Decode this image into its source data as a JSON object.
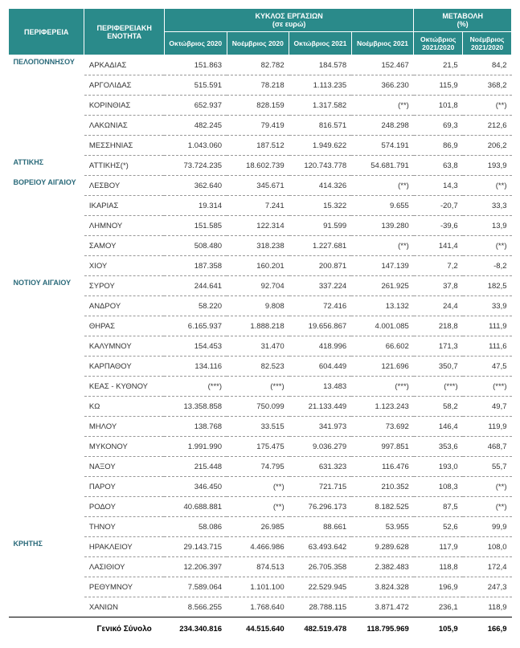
{
  "headers": {
    "region": "ΠΕΡΙΦΕΡΕΙΑ",
    "unit": "ΠΕΡΙΦΕΡΕΙΑΚΗ ΕΝΟΤΗΤΑ",
    "turnover": "ΚΥΚΛΟΣ ΕΡΓΑΣΙΩΝ",
    "turnover_sub": "(σε ευρώ)",
    "change": "ΜΕΤΑΒΟΛΗ",
    "change_sub": "(%)",
    "oct20": "Οκτώβριος 2020",
    "nov20": "Νοέμβριος 2020",
    "oct21": "Οκτώβριος 2021",
    "nov21": "Νοέμβριος 2021",
    "oct_ch": "Οκτώβριος 2021/2020",
    "nov_ch": "Νοέμβριος 2021/2020"
  },
  "colors": {
    "header_bg": "#2a8a8a",
    "header_fg": "#ffffff",
    "region_fg": "#2a6a7a"
  },
  "groups": [
    {
      "region": "ΠΕΛΟΠΟΝΝΗΣΟΥ",
      "rows": [
        {
          "unit": "ΑΡΚΑΔΙΑΣ",
          "oct20": "151.863",
          "nov20": "82.782",
          "oct21": "184.578",
          "nov21": "152.467",
          "octc": "21,5",
          "novc": "84,2"
        },
        {
          "unit": "ΑΡΓΟΛΙΔΑΣ",
          "oct20": "515.591",
          "nov20": "78.218",
          "oct21": "1.113.235",
          "nov21": "366.230",
          "octc": "115,9",
          "novc": "368,2"
        },
        {
          "unit": "ΚΟΡΙΝΘΙΑΣ",
          "oct20": "652.937",
          "nov20": "828.159",
          "oct21": "1.317.582",
          "nov21": "(**)",
          "octc": "101,8",
          "novc": "(**)"
        },
        {
          "unit": "ΛΑΚΩΝΙΑΣ",
          "oct20": "482.245",
          "nov20": "79.419",
          "oct21": "816.571",
          "nov21": "248.298",
          "octc": "69,3",
          "novc": "212,6"
        },
        {
          "unit": "ΜΕΣΣΗΝΙΑΣ",
          "oct20": "1.043.060",
          "nov20": "187.512",
          "oct21": "1.949.622",
          "nov21": "574.191",
          "octc": "86,9",
          "novc": "206,2"
        }
      ]
    },
    {
      "region": "ΑΤΤΙΚΗΣ",
      "rows": [
        {
          "unit": "ΑΤΤΙΚΗΣ(*)",
          "oct20": "73.724.235",
          "nov20": "18.602.739",
          "oct21": "120.743.778",
          "nov21": "54.681.791",
          "octc": "63,8",
          "novc": "193,9"
        }
      ]
    },
    {
      "region": "ΒΟΡΕΙΟΥ ΑΙΓΑΙΟΥ",
      "rows": [
        {
          "unit": "ΛΕΣΒΟΥ",
          "oct20": "362.640",
          "nov20": "345.671",
          "oct21": "414.326",
          "nov21": "(**)",
          "octc": "14,3",
          "novc": "(**)"
        },
        {
          "unit": "ΙΚΑΡΙΑΣ",
          "oct20": "19.314",
          "nov20": "7.241",
          "oct21": "15.322",
          "nov21": "9.655",
          "octc": "-20,7",
          "novc": "33,3"
        },
        {
          "unit": "ΛΗΜΝΟΥ",
          "oct20": "151.585",
          "nov20": "122.314",
          "oct21": "91.599",
          "nov21": "139.280",
          "octc": "-39,6",
          "novc": "13,9"
        },
        {
          "unit": "ΣΑΜΟΥ",
          "oct20": "508.480",
          "nov20": "318.238",
          "oct21": "1.227.681",
          "nov21": "(**)",
          "octc": "141,4",
          "novc": "(**)"
        },
        {
          "unit": "ΧΙΟΥ",
          "oct20": "187.358",
          "nov20": "160.201",
          "oct21": "200.871",
          "nov21": "147.139",
          "octc": "7,2",
          "novc": "-8,2"
        }
      ]
    },
    {
      "region": "ΝΟΤΙΟΥ ΑΙΓΑΙΟΥ",
      "rows": [
        {
          "unit": "ΣΥΡΟΥ",
          "oct20": "244.641",
          "nov20": "92.704",
          "oct21": "337.224",
          "nov21": "261.925",
          "octc": "37,8",
          "novc": "182,5"
        },
        {
          "unit": "ΑΝΔΡΟΥ",
          "oct20": "58.220",
          "nov20": "9.808",
          "oct21": "72.416",
          "nov21": "13.132",
          "octc": "24,4",
          "novc": "33,9"
        },
        {
          "unit": "ΘΗΡΑΣ",
          "oct20": "6.165.937",
          "nov20": "1.888.218",
          "oct21": "19.656.867",
          "nov21": "4.001.085",
          "octc": "218,8",
          "novc": "111,9"
        },
        {
          "unit": "ΚΑΛΥΜΝΟΥ",
          "oct20": "154.453",
          "nov20": "31.470",
          "oct21": "418.996",
          "nov21": "66.602",
          "octc": "171,3",
          "novc": "111,6"
        },
        {
          "unit": "ΚΑΡΠΑΘΟΥ",
          "oct20": "134.116",
          "nov20": "82.523",
          "oct21": "604.449",
          "nov21": "121.696",
          "octc": "350,7",
          "novc": "47,5"
        },
        {
          "unit": "ΚΕΑΣ - ΚΥΘΝΟΥ",
          "oct20": "(***)",
          "nov20": "(***)",
          "oct21": "13.483",
          "nov21": "(***)",
          "octc": "(***)",
          "novc": "(***)"
        },
        {
          "unit": "ΚΩ",
          "oct20": "13.358.858",
          "nov20": "750.099",
          "oct21": "21.133.449",
          "nov21": "1.123.243",
          "octc": "58,2",
          "novc": "49,7"
        },
        {
          "unit": "ΜΗΛΟΥ",
          "oct20": "138.768",
          "nov20": "33.515",
          "oct21": "341.973",
          "nov21": "73.692",
          "octc": "146,4",
          "novc": "119,9"
        },
        {
          "unit": "ΜΥΚΟΝΟΥ",
          "oct20": "1.991.990",
          "nov20": "175.475",
          "oct21": "9.036.279",
          "nov21": "997.851",
          "octc": "353,6",
          "novc": "468,7"
        },
        {
          "unit": "ΝΑΞΟΥ",
          "oct20": "215.448",
          "nov20": "74.795",
          "oct21": "631.323",
          "nov21": "116.476",
          "octc": "193,0",
          "novc": "55,7"
        },
        {
          "unit": "ΠΑΡΟΥ",
          "oct20": "346.450",
          "nov20": "(**)",
          "oct21": "721.715",
          "nov21": "210.352",
          "octc": "108,3",
          "novc": "(**)"
        },
        {
          "unit": "ΡΟΔΟΥ",
          "oct20": "40.688.881",
          "nov20": "(**)",
          "oct21": "76.296.173",
          "nov21": "8.182.525",
          "octc": "87,5",
          "novc": "(**)"
        },
        {
          "unit": "ΤΗΝΟΥ",
          "oct20": "58.086",
          "nov20": "26.985",
          "oct21": "88.661",
          "nov21": "53.955",
          "octc": "52,6",
          "novc": "99,9"
        }
      ]
    },
    {
      "region": "ΚΡΗΤΗΣ",
      "rows": [
        {
          "unit": "ΗΡΑΚΛΕΙΟΥ",
          "oct20": "29.143.715",
          "nov20": "4.466.986",
          "oct21": "63.493.642",
          "nov21": "9.289.628",
          "octc": "117,9",
          "novc": "108,0"
        },
        {
          "unit": "ΛΑΣΙΘΙΟΥ",
          "oct20": "12.206.397",
          "nov20": "874.513",
          "oct21": "26.705.358",
          "nov21": "2.382.483",
          "octc": "118,8",
          "novc": "172,4"
        },
        {
          "unit": "ΡΕΘΥΜΝΟΥ",
          "oct20": "7.589.064",
          "nov20": "1.101.100",
          "oct21": "22.529.945",
          "nov21": "3.824.328",
          "octc": "196,9",
          "novc": "247,3"
        },
        {
          "unit": "ΧΑΝΙΩΝ",
          "oct20": "8.566.255",
          "nov20": "1.768.640",
          "oct21": "28.788.115",
          "nov21": "3.871.472",
          "octc": "236,1",
          "novc": "118,9"
        }
      ]
    }
  ],
  "total": {
    "label": "Γενικό Σύνολο",
    "oct20": "234.340.816",
    "nov20": "44.515.640",
    "oct21": "482.519.478",
    "nov21": "118.795.969",
    "octc": "105,9",
    "novc": "166,9"
  }
}
